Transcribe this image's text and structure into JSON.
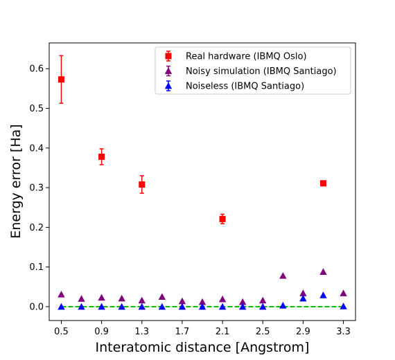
{
  "chart_data": {
    "type": "scatter",
    "title": "",
    "xlabel": "Interatomic distance [Angstrom]",
    "ylabel": "Energy error [Ha]",
    "xlim": [
      0.38,
      3.42
    ],
    "ylim": [
      -0.035,
      0.665
    ],
    "xticks": [
      "0.5",
      "0.9",
      "1.3",
      "1.7",
      "2.1",
      "2.5",
      "2.9",
      "3.3"
    ],
    "yticks": [
      "0.0",
      "0.1",
      "0.2",
      "0.3",
      "0.4",
      "0.5",
      "0.6"
    ],
    "grid": false,
    "legend_position": "top-right",
    "reference_line": {
      "y": 0.0,
      "color": "#00c000",
      "style": "dashed"
    },
    "series": [
      {
        "name": "Real hardware (IBMQ Oslo)",
        "marker": "square",
        "color": "#ff0000",
        "points": [
          {
            "x": 0.5,
            "y": 0.573,
            "err": 0.06
          },
          {
            "x": 0.9,
            "y": 0.378,
            "err": 0.02
          },
          {
            "x": 1.3,
            "y": 0.308,
            "err": 0.022
          },
          {
            "x": 2.1,
            "y": 0.221,
            "err": 0.012
          },
          {
            "x": 3.1,
            "y": 0.311,
            "err": 0.006
          }
        ]
      },
      {
        "name": "Noisy simulation (IBMQ Santiago)",
        "marker": "triangle",
        "color": "#800080",
        "points": [
          {
            "x": 0.5,
            "y": 0.031
          },
          {
            "x": 0.7,
            "y": 0.02
          },
          {
            "x": 0.9,
            "y": 0.023
          },
          {
            "x": 1.1,
            "y": 0.021
          },
          {
            "x": 1.3,
            "y": 0.016
          },
          {
            "x": 1.5,
            "y": 0.025
          },
          {
            "x": 1.7,
            "y": 0.014
          },
          {
            "x": 1.9,
            "y": 0.012
          },
          {
            "x": 2.1,
            "y": 0.019
          },
          {
            "x": 2.3,
            "y": 0.012
          },
          {
            "x": 2.5,
            "y": 0.016
          },
          {
            "x": 2.7,
            "y": 0.078
          },
          {
            "x": 2.9,
            "y": 0.034
          },
          {
            "x": 3.1,
            "y": 0.088
          },
          {
            "x": 3.3,
            "y": 0.034
          }
        ]
      },
      {
        "name": "Noiseless (IBMQ Santiago)",
        "marker": "triangle",
        "color": "#0000ff",
        "points": [
          {
            "x": 0.5,
            "y": 0.0
          },
          {
            "x": 0.7,
            "y": 0.0
          },
          {
            "x": 0.9,
            "y": 0.0
          },
          {
            "x": 1.1,
            "y": 0.0
          },
          {
            "x": 1.3,
            "y": 0.0
          },
          {
            "x": 1.5,
            "y": 0.0
          },
          {
            "x": 1.7,
            "y": 0.0
          },
          {
            "x": 1.9,
            "y": 0.0
          },
          {
            "x": 2.1,
            "y": 0.0
          },
          {
            "x": 2.3,
            "y": 0.0
          },
          {
            "x": 2.5,
            "y": 0.0
          },
          {
            "x": 2.7,
            "y": 0.003
          },
          {
            "x": 2.9,
            "y": 0.021
          },
          {
            "x": 3.1,
            "y": 0.029
          },
          {
            "x": 3.3,
            "y": 0.001
          }
        ]
      }
    ]
  }
}
